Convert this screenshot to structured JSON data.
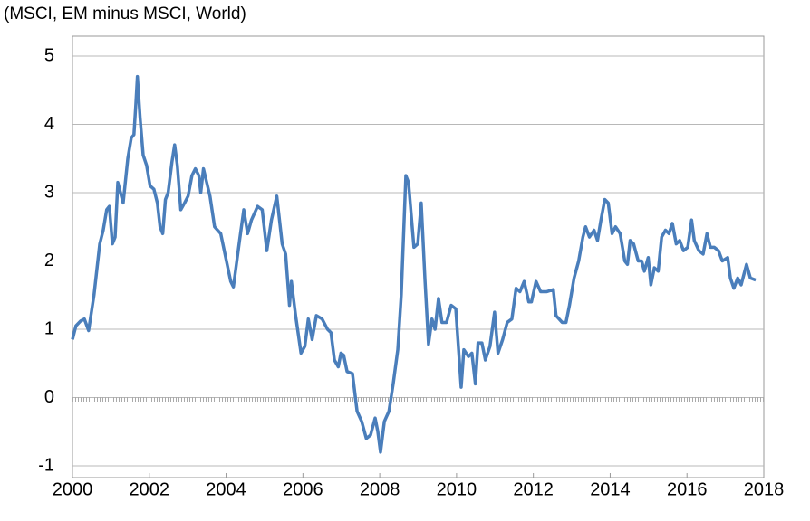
{
  "chart_data": {
    "type": "line",
    "title": "(MSCI, EM minus MSCI, World)",
    "x": [
      2000,
      2000.09,
      2000.21,
      2000.31,
      2000.42,
      2000.56,
      2000.71,
      2000.8,
      2000.89,
      2000.96,
      2001.04,
      2001.11,
      2001.18,
      2001.32,
      2001.44,
      2001.53,
      2001.6,
      2001.65,
      2001.69,
      2001.76,
      2001.84,
      2001.93,
      2002.02,
      2002.12,
      2002.21,
      2002.28,
      2002.35,
      2002.42,
      2002.49,
      2002.59,
      2002.66,
      2002.73,
      2002.82,
      2002.92,
      2003.01,
      2003.11,
      2003.2,
      2003.29,
      2003.34,
      2003.41,
      2003.58,
      2003.7,
      2003.86,
      2004.12,
      2004.19,
      2004.35,
      2004.46,
      2004.56,
      2004.66,
      2004.82,
      2004.94,
      2005.06,
      2005.18,
      2005.32,
      2005.46,
      2005.55,
      2005.65,
      2005.7,
      2005.81,
      2005.95,
      2006.05,
      2006.14,
      2006.24,
      2006.35,
      2006.5,
      2006.64,
      2006.73,
      2006.82,
      2006.92,
      2006.99,
      2007.06,
      2007.15,
      2007.29,
      2007.41,
      2007.53,
      2007.65,
      2007.76,
      2007.88,
      2007.95,
      2008.02,
      2008.12,
      2008.24,
      2008.35,
      2008.47,
      2008.56,
      2008.68,
      2008.75,
      2008.89,
      2008.99,
      2009.08,
      2009.18,
      2009.27,
      2009.36,
      2009.44,
      2009.53,
      2009.62,
      2009.74,
      2009.86,
      2009.98,
      2010.12,
      2010.19,
      2010.31,
      2010.4,
      2010.49,
      2010.56,
      2010.66,
      2010.75,
      2010.87,
      2010.99,
      2011.08,
      2011.2,
      2011.32,
      2011.44,
      2011.55,
      2011.65,
      2011.76,
      2011.88,
      2011.95,
      2012.07,
      2012.19,
      2012.35,
      2012.52,
      2012.59,
      2012.75,
      2012.85,
      2012.94,
      2013.06,
      2013.18,
      2013.29,
      2013.36,
      2013.46,
      2013.58,
      2013.67,
      2013.76,
      2013.86,
      2013.95,
      2014.05,
      2014.14,
      2014.26,
      2014.38,
      2014.45,
      2014.52,
      2014.61,
      2014.73,
      2014.82,
      2014.89,
      2014.99,
      2015.06,
      2015.15,
      2015.25,
      2015.34,
      2015.44,
      2015.53,
      2015.62,
      2015.72,
      2015.81,
      2015.91,
      2016.02,
      2016.12,
      2016.19,
      2016.31,
      2016.42,
      2016.52,
      2016.61,
      2016.71,
      2016.82,
      2016.92,
      2017.06,
      2017.13,
      2017.22,
      2017.32,
      2017.41,
      2017.55,
      2017.65,
      2017.79
    ],
    "values": [
      0.85,
      1.05,
      1.12,
      1.15,
      0.98,
      1.5,
      2.25,
      2.45,
      2.75,
      2.8,
      2.25,
      2.35,
      3.15,
      2.85,
      3.5,
      3.8,
      3.85,
      4.3,
      4.7,
      4.1,
      3.55,
      3.4,
      3.1,
      3.05,
      2.85,
      2.5,
      2.4,
      2.9,
      3.0,
      3.45,
      3.7,
      3.4,
      2.75,
      2.85,
      2.95,
      3.25,
      3.35,
      3.25,
      3.0,
      3.35,
      2.95,
      2.5,
      2.4,
      1.7,
      1.62,
      2.3,
      2.75,
      2.4,
      2.6,
      2.8,
      2.75,
      2.15,
      2.6,
      2.95,
      2.25,
      2.1,
      1.35,
      1.7,
      1.2,
      0.65,
      0.75,
      1.15,
      0.85,
      1.2,
      1.15,
      1.0,
      0.95,
      0.55,
      0.45,
      0.65,
      0.62,
      0.38,
      0.35,
      -0.2,
      -0.35,
      -0.6,
      -0.55,
      -0.3,
      -0.5,
      -0.8,
      -0.35,
      -0.2,
      0.2,
      0.7,
      1.5,
      3.25,
      3.15,
      2.2,
      2.25,
      2.85,
      1.7,
      0.78,
      1.15,
      1.0,
      1.45,
      1.1,
      1.1,
      1.35,
      1.3,
      0.15,
      0.7,
      0.6,
      0.65,
      0.2,
      0.8,
      0.8,
      0.55,
      0.75,
      1.25,
      0.65,
      0.85,
      1.1,
      1.15,
      1.6,
      1.55,
      1.7,
      1.4,
      1.4,
      1.7,
      1.55,
      1.55,
      1.58,
      1.2,
      1.1,
      1.1,
      1.35,
      1.75,
      2.0,
      2.35,
      2.5,
      2.35,
      2.45,
      2.3,
      2.6,
      2.9,
      2.85,
      2.4,
      2.5,
      2.4,
      2.0,
      1.95,
      2.3,
      2.25,
      2.0,
      2.0,
      1.85,
      2.05,
      1.65,
      1.9,
      1.85,
      2.35,
      2.45,
      2.4,
      2.55,
      2.25,
      2.3,
      2.15,
      2.2,
      2.6,
      2.3,
      2.15,
      2.1,
      2.4,
      2.2,
      2.2,
      2.15,
      2.0,
      2.05,
      1.75,
      1.6,
      1.75,
      1.65,
      1.95,
      1.75,
      1.72
    ],
    "color": "#4a7ebb",
    "xlim": [
      2000,
      2018
    ],
    "xticks": [
      2000,
      2002,
      2004,
      2006,
      2008,
      2010,
      2012,
      2014,
      2016,
      2018
    ],
    "ylim": [
      -1,
      5
    ],
    "yticks": [
      -1,
      0,
      1,
      2,
      3,
      4,
      5
    ],
    "grid": true
  }
}
